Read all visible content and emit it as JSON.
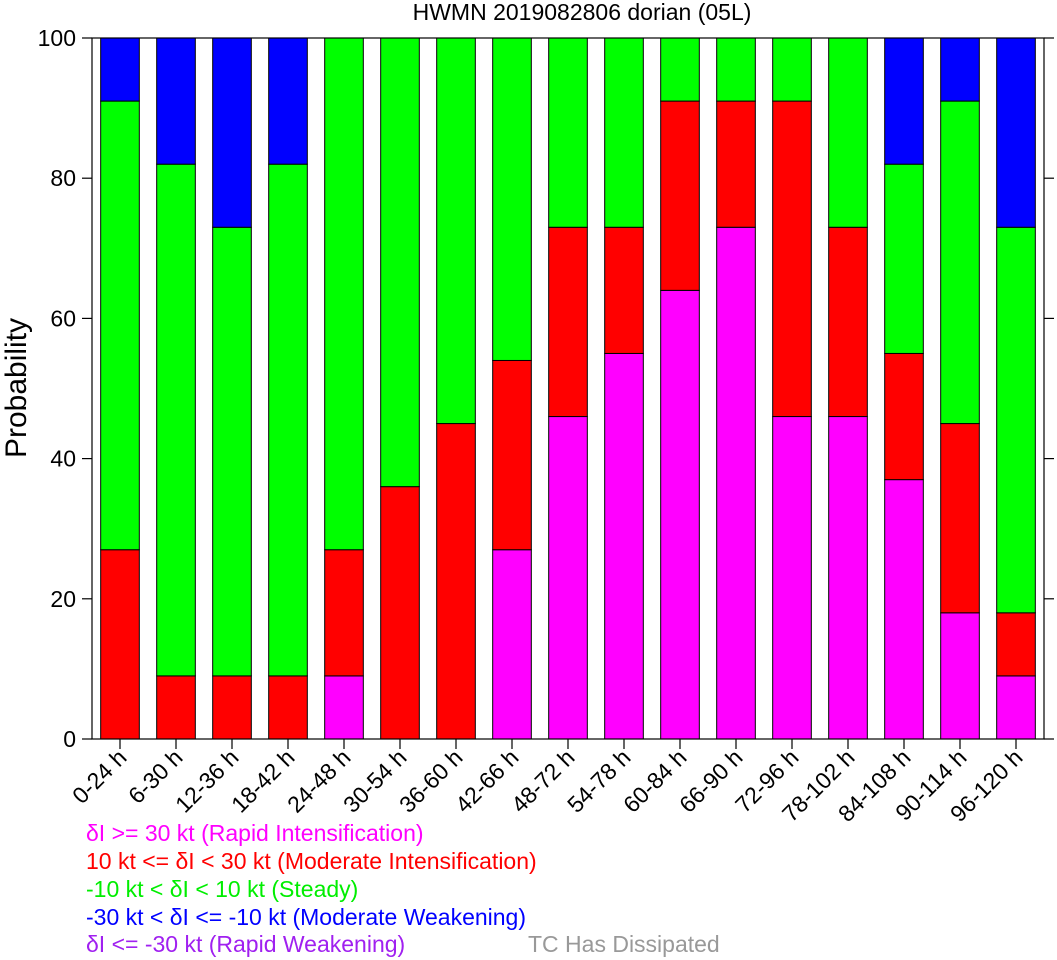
{
  "chart_data": {
    "type": "bar",
    "stacked": true,
    "title": "HWMN 2019082806 dorian (05L)",
    "ylabel": "Probability",
    "xlabel": "",
    "ylim": [
      0,
      100
    ],
    "yticks": [
      "0",
      "20",
      "40",
      "60",
      "80",
      "100"
    ],
    "categories": [
      "0-24 h",
      "6-30 h",
      "12-36 h",
      "18-42 h",
      "24-48 h",
      "30-54 h",
      "36-60 h",
      "42-66 h",
      "48-72 h",
      "54-78 h",
      "60-84 h",
      "66-90 h",
      "72-96 h",
      "78-102 h",
      "84-108 h",
      "90-114 h",
      "96-120 h"
    ],
    "series": [
      {
        "name": "δI >= 30 kt (Rapid Intensification)",
        "color": "#ff00ff",
        "values": [
          0,
          0,
          0,
          0,
          9,
          0,
          0,
          27,
          46,
          55,
          64,
          73,
          46,
          46,
          37,
          18,
          9
        ]
      },
      {
        "name": "10 kt <= δI < 30 kt (Moderate Intensification)",
        "color": "#ff0000",
        "values": [
          27,
          9,
          9,
          9,
          18,
          36,
          45,
          27,
          27,
          18,
          27,
          18,
          45,
          27,
          18,
          27,
          9
        ]
      },
      {
        "name": "-10 kt < δI < 10 kt (Steady)",
        "color": "#00ff00",
        "values": [
          64,
          73,
          64,
          73,
          73,
          64,
          55,
          46,
          27,
          27,
          9,
          9,
          9,
          27,
          27,
          46,
          55
        ]
      },
      {
        "name": "-30 kt < δI <= -10 kt (Moderate Weakening)",
        "color": "#0000ff",
        "values": [
          9,
          18,
          27,
          18,
          0,
          0,
          0,
          0,
          0,
          0,
          0,
          0,
          0,
          0,
          18,
          9,
          27
        ]
      },
      {
        "name": "δI <= -30 kt (Rapid Weakening)",
        "color": "#a020f0",
        "values": [
          0,
          0,
          0,
          0,
          0,
          0,
          0,
          0,
          0,
          0,
          0,
          0,
          0,
          0,
          0,
          0,
          0
        ]
      },
      {
        "name": "TC Has Dissipated",
        "color": "#999999",
        "values": [
          0,
          0,
          0,
          0,
          0,
          0,
          0,
          0,
          0,
          0,
          0,
          0,
          0,
          0,
          0,
          0,
          0
        ]
      }
    ],
    "grid": false,
    "legend_position": "bottom"
  }
}
